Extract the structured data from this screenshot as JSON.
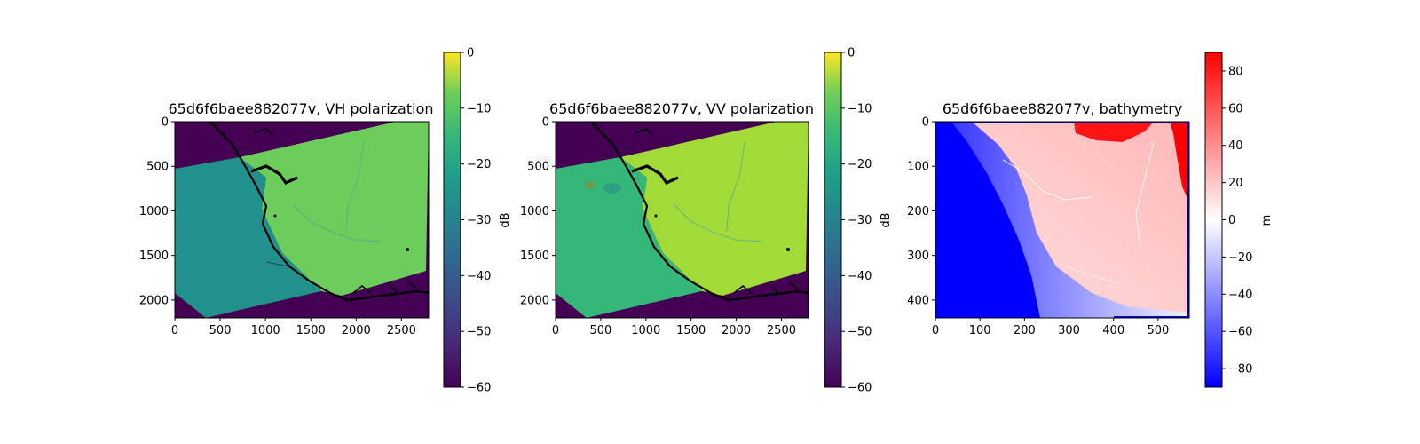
{
  "chart_data": [
    {
      "type": "heatmap",
      "title": "65d6f6baee882077v, VH polarization",
      "xlabel": "",
      "ylabel": "",
      "xlim": [
        0,
        2800
      ],
      "ylim": [
        2200,
        0
      ],
      "xticks": [
        "0",
        "500",
        "1000",
        "1500",
        "2000",
        "2500"
      ],
      "yticks": [
        "0",
        "500",
        "1000",
        "1500",
        "2000"
      ],
      "colorbar": {
        "label": "dB",
        "range": [
          -60,
          0
        ],
        "ticks": [
          "0",
          "−10",
          "−20",
          "−30",
          "−40",
          "−50",
          "−60"
        ],
        "colormap": "viridis"
      },
      "background_value": -60,
      "sea_value": -25,
      "land_value": -15,
      "colors": {
        "background": "#440154",
        "sea": "#21918c",
        "land": "#6ccd5a",
        "coastline": "#000000"
      }
    },
    {
      "type": "heatmap",
      "title": "65d6f6baee882077v, VV polarization",
      "xlabel": "",
      "ylabel": "",
      "xlim": [
        0,
        2800
      ],
      "ylim": [
        2200,
        0
      ],
      "xticks": [
        "0",
        "500",
        "1000",
        "1500",
        "2000",
        "2500"
      ],
      "yticks": [
        "0",
        "500",
        "1000",
        "1500",
        "2000"
      ],
      "colorbar": {
        "label": "dB",
        "range": [
          -60,
          0
        ],
        "ticks": [
          "0",
          "−10",
          "−20",
          "−30",
          "−40",
          "−50",
          "−60"
        ],
        "colormap": "viridis"
      },
      "background_value": -60,
      "sea_value": -20,
      "land_value": -8,
      "colors": {
        "background": "#440154",
        "sea": "#35b779",
        "land": "#a2da37",
        "coastline": "#000000"
      }
    },
    {
      "type": "heatmap",
      "title": "65d6f6baee882077v, bathymetry",
      "xlabel": "",
      "ylabel": "",
      "xlim": [
        0,
        570
      ],
      "ylim": [
        440,
        0
      ],
      "xticks": [
        "0",
        "100",
        "200",
        "300",
        "400",
        "500"
      ],
      "yticks": [
        "0",
        "100",
        "200",
        "300",
        "400"
      ],
      "colorbar": {
        "label": "m",
        "range": [
          -90,
          90
        ],
        "ticks": [
          "80",
          "60",
          "40",
          "20",
          "0",
          "−20",
          "−40",
          "−60",
          "−80"
        ],
        "colormap": "bwr"
      },
      "deep_sea_value": -90,
      "shelf_value": -20,
      "land_value": 15,
      "highland_value": 90,
      "colors": {
        "deep": "#0000ff",
        "shelf": "#dcdcff",
        "land": "#ffd2d2",
        "high": "#ff0000"
      }
    }
  ]
}
